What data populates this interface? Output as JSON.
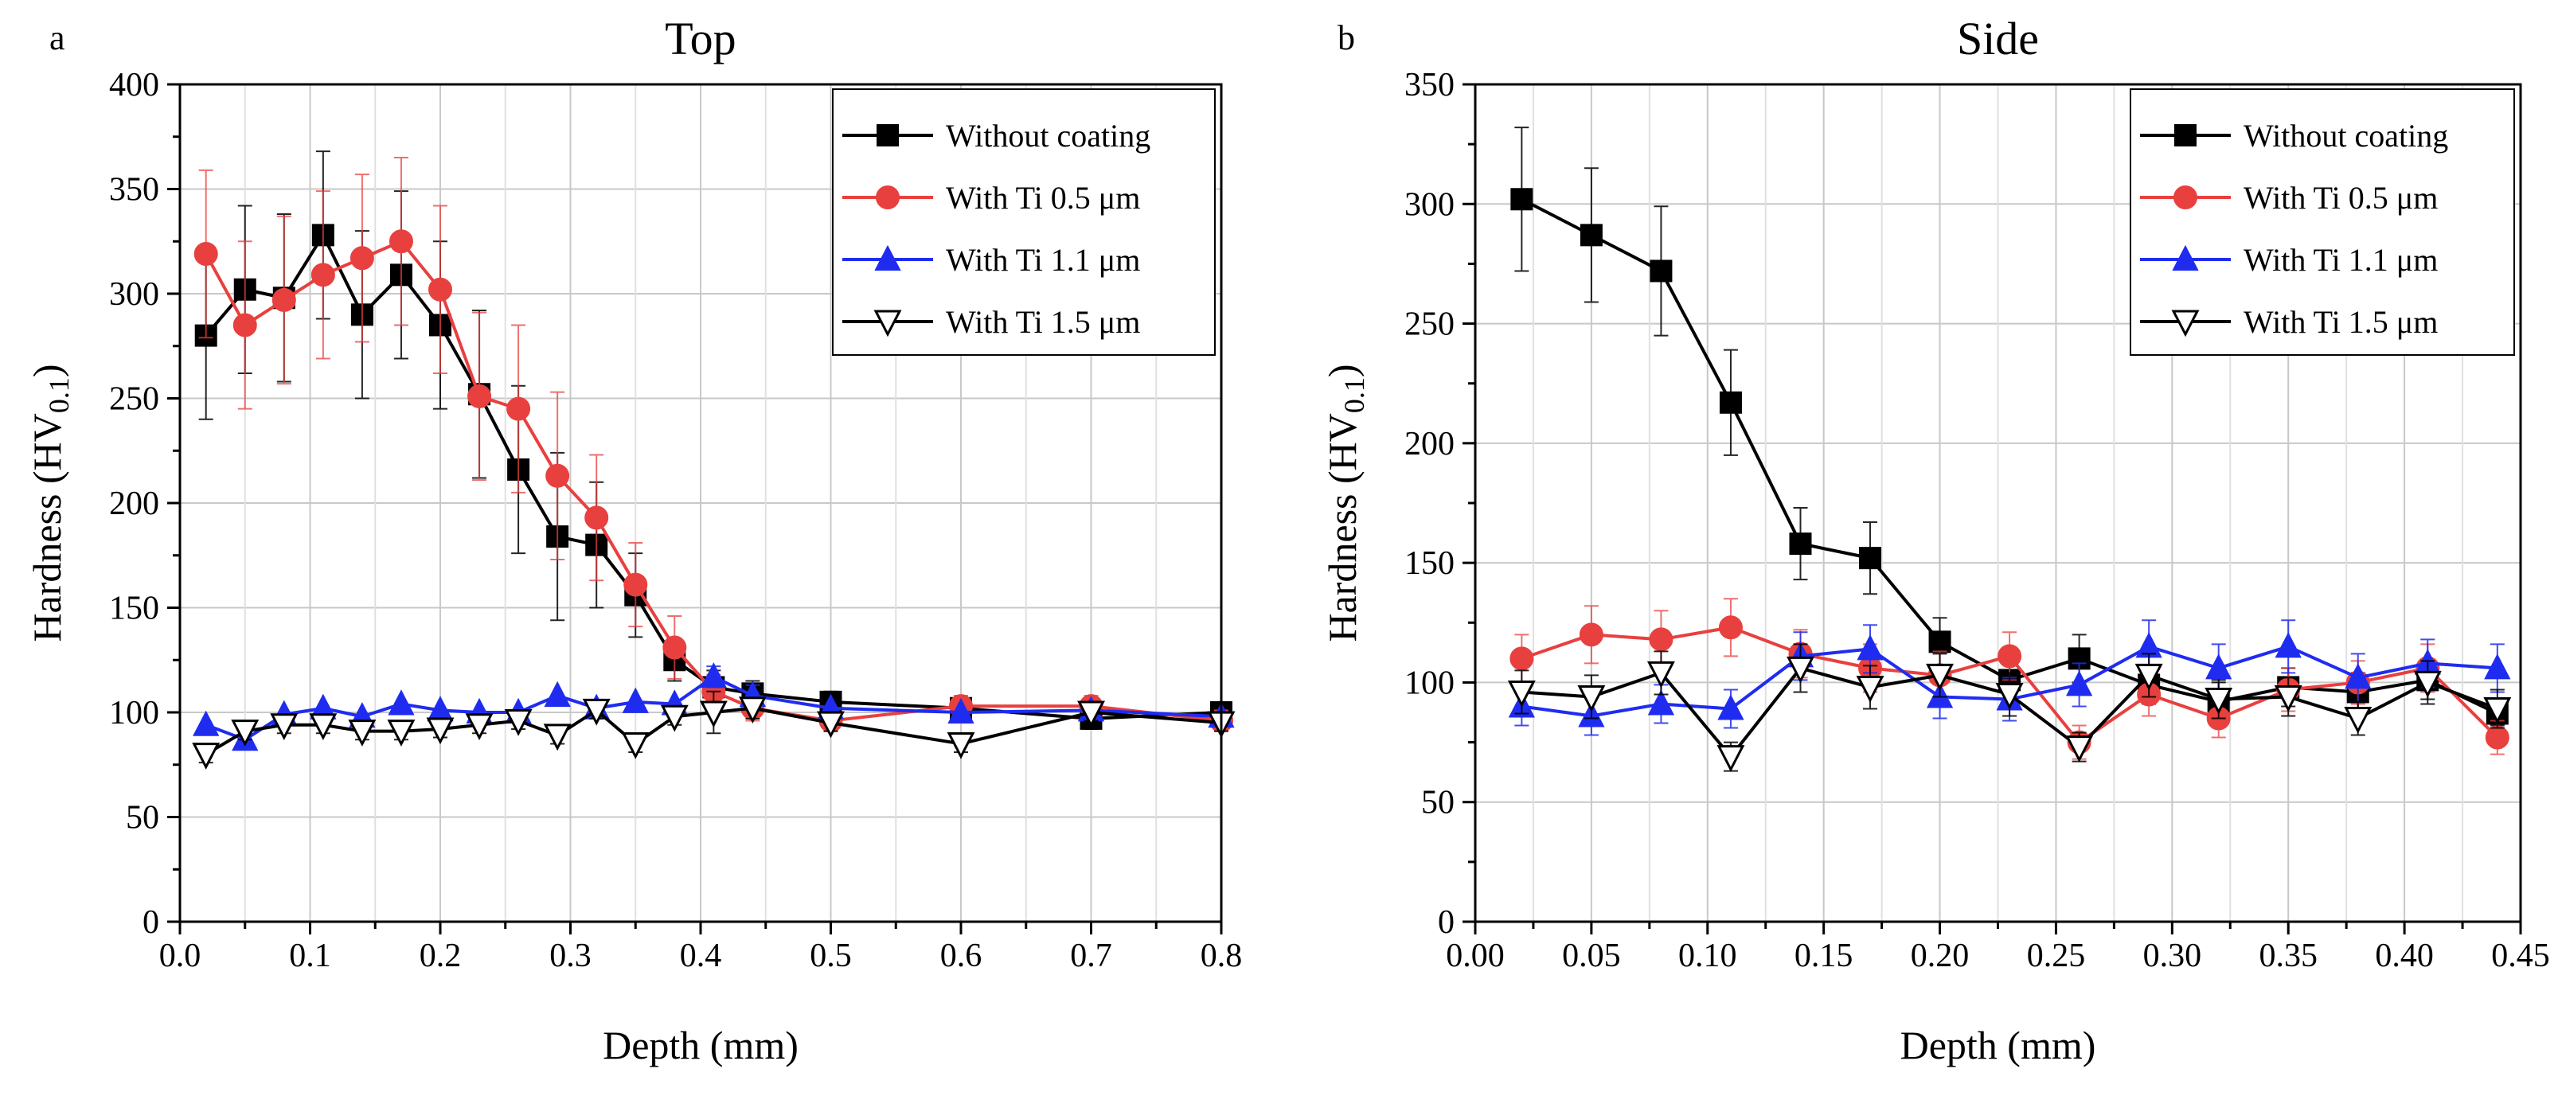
{
  "figure_caption": "",
  "chart_data": [
    {
      "type": "line",
      "panel_label": "a",
      "title": "Top",
      "xlabel": "Depth (mm)",
      "ylabel_main": "Hardness (HV",
      "ylabel_sub": "0.1",
      "ylabel_close": ")",
      "xlim": [
        0,
        0.8
      ],
      "ylim": [
        0,
        400
      ],
      "xticks": [
        0.0,
        0.1,
        0.2,
        0.3,
        0.4,
        0.5,
        0.6,
        0.7,
        0.8
      ],
      "xtick_labels": [
        "0.0",
        "0.1",
        "0.2",
        "0.3",
        "0.4",
        "0.5",
        "0.6",
        "0.7",
        "0.8"
      ],
      "yticks": [
        0,
        50,
        100,
        150,
        200,
        250,
        300,
        350,
        400
      ],
      "ytick_labels": [
        "0",
        "50",
        "100",
        "150",
        "200",
        "250",
        "300",
        "350",
        "400"
      ],
      "grid": true,
      "legend_position": "top-right",
      "series": [
        {
          "name": "Without coating",
          "color": "#000000",
          "marker": "square",
          "x": [
            0.02,
            0.05,
            0.08,
            0.11,
            0.14,
            0.17,
            0.2,
            0.23,
            0.26,
            0.29,
            0.32,
            0.35,
            0.38,
            0.41,
            0.44,
            0.5,
            0.6,
            0.7,
            0.8
          ],
          "y": [
            280,
            302,
            298,
            328,
            290,
            309,
            285,
            252,
            216,
            184,
            180,
            156,
            125,
            112,
            109,
            105,
            102,
            97,
            100
          ],
          "err": [
            40,
            40,
            40,
            40,
            40,
            40,
            40,
            40,
            40,
            40,
            30,
            20,
            10,
            8,
            6,
            5,
            5,
            5,
            5
          ]
        },
        {
          "name": "With Ti 0.5 μm",
          "color": "#e8403f",
          "marker": "circle",
          "x": [
            0.02,
            0.05,
            0.08,
            0.11,
            0.14,
            0.17,
            0.2,
            0.23,
            0.26,
            0.29,
            0.32,
            0.35,
            0.38,
            0.41,
            0.44,
            0.5,
            0.6,
            0.7,
            0.8
          ],
          "y": [
            319,
            285,
            297,
            309,
            317,
            325,
            302,
            251,
            245,
            213,
            193,
            161,
            131,
            110,
            102,
            96,
            103,
            103,
            96
          ],
          "err": [
            40,
            40,
            40,
            40,
            40,
            40,
            40,
            40,
            40,
            40,
            30,
            20,
            15,
            8,
            6,
            5,
            5,
            5,
            5
          ]
        },
        {
          "name": "With Ti 1.1 μm",
          "color": "#1f2cf0",
          "marker": "triangle-up",
          "x": [
            0.02,
            0.05,
            0.08,
            0.11,
            0.14,
            0.17,
            0.2,
            0.23,
            0.26,
            0.29,
            0.32,
            0.35,
            0.38,
            0.41,
            0.44,
            0.5,
            0.6,
            0.7,
            0.8
          ],
          "y": [
            94,
            87,
            99,
            102,
            98,
            104,
            101,
            100,
            100,
            108,
            102,
            105,
            104,
            117,
            108,
            102,
            100,
            101,
            98
          ],
          "err": [
            0,
            0,
            0,
            0,
            0,
            0,
            0,
            0,
            0,
            0,
            0,
            0,
            0,
            5,
            5,
            0,
            0,
            0,
            0
          ]
        },
        {
          "name": "With Ti 1.5 μm",
          "color": "#000000",
          "marker": "triangle-down-open",
          "x": [
            0.02,
            0.05,
            0.08,
            0.11,
            0.14,
            0.17,
            0.2,
            0.23,
            0.26,
            0.29,
            0.32,
            0.35,
            0.38,
            0.41,
            0.44,
            0.5,
            0.6,
            0.7,
            0.8
          ],
          "y": [
            80,
            91,
            94,
            94,
            91,
            91,
            92,
            94,
            96,
            89,
            101,
            85,
            98,
            100,
            102,
            95,
            85,
            100,
            95
          ],
          "err": [
            4,
            4,
            4,
            4,
            4,
            4,
            4,
            4,
            4,
            4,
            4,
            4,
            4,
            10,
            5,
            4,
            4,
            4,
            4
          ]
        }
      ]
    },
    {
      "type": "line",
      "panel_label": "b",
      "title": "Side",
      "xlabel": "Depth (mm)",
      "ylabel_main": "Hardness (HV",
      "ylabel_sub": "0.1",
      "ylabel_close": ")",
      "xlim": [
        0,
        0.45
      ],
      "ylim": [
        0,
        350
      ],
      "xticks": [
        0.0,
        0.05,
        0.1,
        0.15,
        0.2,
        0.25,
        0.3,
        0.35,
        0.4,
        0.45
      ],
      "xtick_labels": [
        "0.00",
        "0.05",
        "0.10",
        "0.15",
        "0.20",
        "0.25",
        "0.30",
        "0.35",
        "0.40",
        "0.45"
      ],
      "yticks": [
        0,
        50,
        100,
        150,
        200,
        250,
        300,
        350
      ],
      "ytick_labels": [
        "0",
        "50",
        "100",
        "150",
        "200",
        "250",
        "300",
        "350"
      ],
      "grid": true,
      "legend_position": "top-right",
      "series": [
        {
          "name": "Without coating",
          "color": "#000000",
          "marker": "square",
          "x": [
            0.02,
            0.05,
            0.08,
            0.11,
            0.14,
            0.17,
            0.2,
            0.23,
            0.26,
            0.29,
            0.32,
            0.35,
            0.38,
            0.41,
            0.44
          ],
          "y": [
            302,
            287,
            272,
            217,
            158,
            152,
            117,
            101,
            110,
            99,
            92,
            98,
            96,
            101,
            87
          ],
          "err": [
            30,
            28,
            27,
            22,
            15,
            15,
            10,
            8,
            10,
            8,
            8,
            8,
            8,
            8,
            5
          ]
        },
        {
          "name": "With Ti 0.5 μm",
          "color": "#e8403f",
          "marker": "circle",
          "x": [
            0.02,
            0.05,
            0.08,
            0.11,
            0.14,
            0.17,
            0.2,
            0.23,
            0.26,
            0.29,
            0.32,
            0.35,
            0.38,
            0.41,
            0.44
          ],
          "y": [
            110,
            120,
            118,
            123,
            112,
            106,
            103,
            111,
            75,
            95,
            85,
            97,
            100,
            106,
            77
          ],
          "err": [
            10,
            12,
            12,
            12,
            10,
            10,
            10,
            10,
            7,
            9,
            8,
            9,
            9,
            10,
            7
          ]
        },
        {
          "name": "With Ti 1.1 μm",
          "color": "#1f2cf0",
          "marker": "triangle-up",
          "x": [
            0.02,
            0.05,
            0.08,
            0.11,
            0.14,
            0.17,
            0.2,
            0.23,
            0.26,
            0.29,
            0.32,
            0.35,
            0.38,
            0.41,
            0.44
          ],
          "y": [
            90,
            86,
            91,
            89,
            111,
            114,
            94,
            93,
            99,
            115,
            106,
            115,
            102,
            108,
            106
          ],
          "err": [
            8,
            8,
            8,
            8,
            10,
            10,
            9,
            9,
            9,
            11,
            10,
            11,
            10,
            10,
            10
          ]
        },
        {
          "name": "With Ti 1.5 μm",
          "color": "#000000",
          "marker": "triangle-down-open",
          "x": [
            0.02,
            0.05,
            0.08,
            0.11,
            0.14,
            0.17,
            0.2,
            0.23,
            0.26,
            0.29,
            0.32,
            0.35,
            0.38,
            0.41,
            0.44
          ],
          "y": [
            96,
            94,
            104,
            69,
            106,
            98,
            103,
            95,
            73,
            103,
            93,
            94,
            85,
            100,
            89
          ],
          "err": [
            9,
            9,
            9,
            6,
            10,
            9,
            9,
            9,
            6,
            9,
            8,
            8,
            7,
            9,
            8
          ]
        }
      ]
    }
  ]
}
